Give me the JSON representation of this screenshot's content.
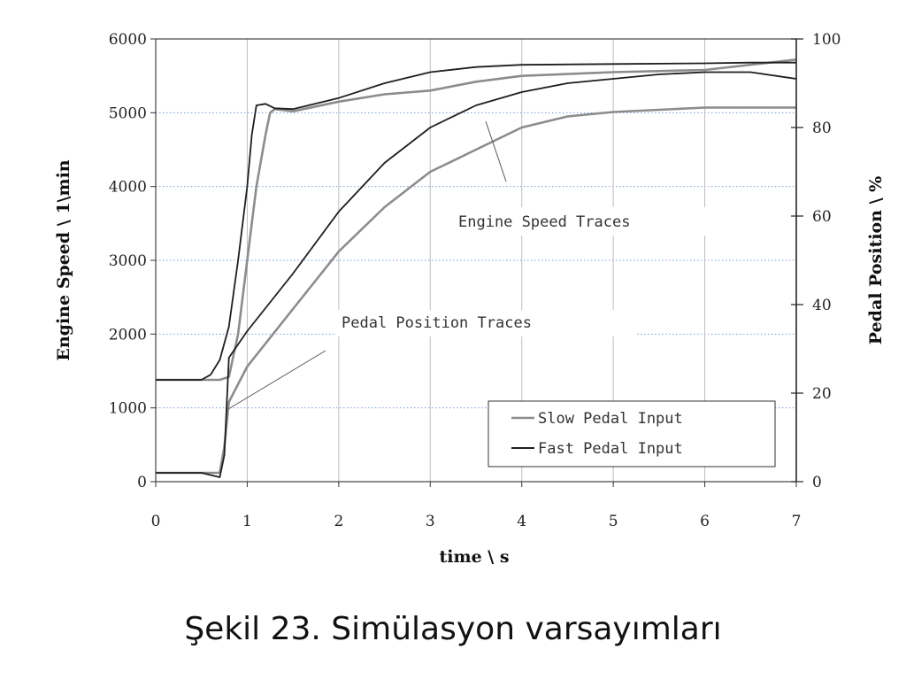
{
  "caption": "Şekil 23. Simülasyon varsayımları",
  "chart_data": {
    "type": "line",
    "xlabel": "time \\ s",
    "ylabel": "Engine Speed  \\  1\\min",
    "y2label": "Pedal Position  \\  %",
    "xlim": [
      0,
      7
    ],
    "ylim": [
      0,
      6000
    ],
    "y2lim": [
      0,
      100
    ],
    "x_ticks": [
      "0",
      "1",
      "2",
      "3",
      "4",
      "5",
      "6",
      "7"
    ],
    "y_ticks": [
      "0",
      "1000",
      "2000",
      "3000",
      "4000",
      "5000",
      "6000"
    ],
    "y2_ticks": [
      "0",
      "20",
      "40",
      "60",
      "80",
      "100"
    ],
    "grid": true,
    "legend_position": "bottom-right",
    "legend": [
      "Slow Pedal Input",
      "Fast Pedal Input"
    ],
    "annotations": [
      "Engine Speed Traces",
      "Pedal Position Traces"
    ],
    "colors": {
      "slow": "#8c8c8c",
      "fast": "#1e1e1e",
      "grid_h": "#7a9fd6",
      "grid_v": "#bdbdbd"
    },
    "series": [
      {
        "name": "Slow Pedal Input",
        "axis": "left",
        "x": [
          0,
          0.5,
          0.7,
          0.8,
          0.9,
          1.0,
          1.1,
          1.2,
          1.25,
          1.3,
          1.5,
          2,
          2.5,
          3,
          3.5,
          4,
          5,
          6,
          7
        ],
        "values": [
          1380,
          1380,
          1380,
          1420,
          2000,
          3000,
          4000,
          4700,
          5000,
          5050,
          5020,
          5150,
          5250,
          5300,
          5420,
          5500,
          5550,
          5580,
          5720
        ]
      },
      {
        "name": "Fast Pedal Input",
        "axis": "left",
        "x": [
          0,
          0.5,
          0.6,
          0.7,
          0.8,
          0.9,
          1.0,
          1.05,
          1.1,
          1.2,
          1.3,
          1.5,
          2,
          2.5,
          3,
          3.5,
          4,
          5,
          6,
          6.5,
          7
        ],
        "values": [
          1380,
          1380,
          1450,
          1650,
          2100,
          3000,
          4000,
          4700,
          5100,
          5120,
          5060,
          5050,
          5200,
          5400,
          5550,
          5620,
          5650,
          5660,
          5670,
          5680,
          5680
        ]
      },
      {
        "name": "Slow Pedal Input",
        "axis": "right",
        "x": [
          0,
          0.5,
          0.7,
          0.75,
          0.8,
          1.0,
          1.5,
          2,
          2.5,
          3,
          3.5,
          4,
          4.5,
          5,
          5.5,
          6,
          6.5,
          7
        ],
        "values": [
          2,
          2,
          2,
          8,
          18,
          26,
          39,
          52,
          62,
          70,
          75,
          80,
          82.5,
          83.5,
          84,
          84.5,
          84.5,
          84.5
        ]
      },
      {
        "name": "Fast Pedal Input",
        "axis": "right",
        "x": [
          0,
          0.5,
          0.6,
          0.7,
          0.75,
          0.8,
          1.0,
          1.5,
          2,
          2.5,
          3,
          3.5,
          4,
          4.5,
          5,
          5.5,
          6,
          6.5,
          7
        ],
        "values": [
          2,
          2,
          1.5,
          1,
          6,
          28,
          34,
          47,
          61,
          72,
          80,
          85,
          88,
          90,
          91,
          92,
          92.5,
          92.5,
          91
        ]
      }
    ]
  }
}
